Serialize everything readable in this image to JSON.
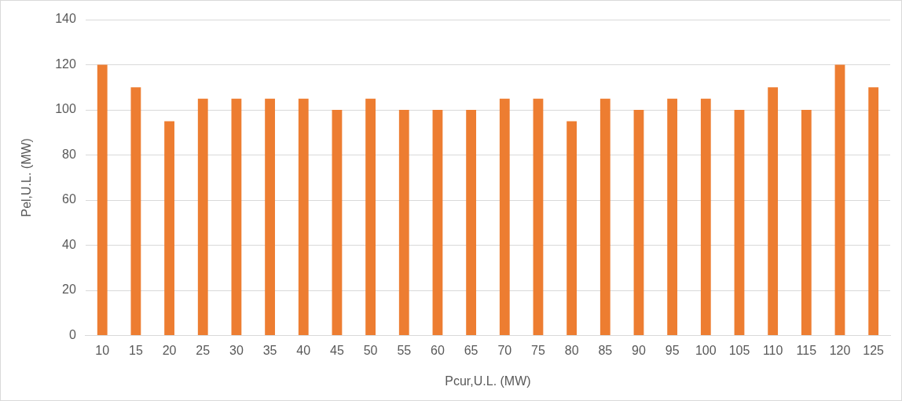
{
  "chart_data": {
    "type": "bar",
    "xlabel": "Pcur,U.L. (MW)",
    "ylabel": "Pel,U.L. (MW)",
    "categories": [
      "10",
      "15",
      "20",
      "25",
      "30",
      "35",
      "40",
      "45",
      "50",
      "55",
      "60",
      "65",
      "70",
      "75",
      "80",
      "85",
      "90",
      "95",
      "100",
      "105",
      "110",
      "115",
      "120",
      "125"
    ],
    "values": [
      120,
      110,
      95,
      105,
      105,
      105,
      105,
      100,
      105,
      100,
      100,
      100,
      105,
      105,
      95,
      105,
      100,
      105,
      105,
      100,
      110,
      100,
      120,
      110
    ],
    "color": "#ed7d31",
    "ylim": [
      0,
      140
    ],
    "yticks": [
      0,
      20,
      40,
      60,
      80,
      100,
      120,
      140
    ],
    "grid": "y",
    "legend": false
  }
}
